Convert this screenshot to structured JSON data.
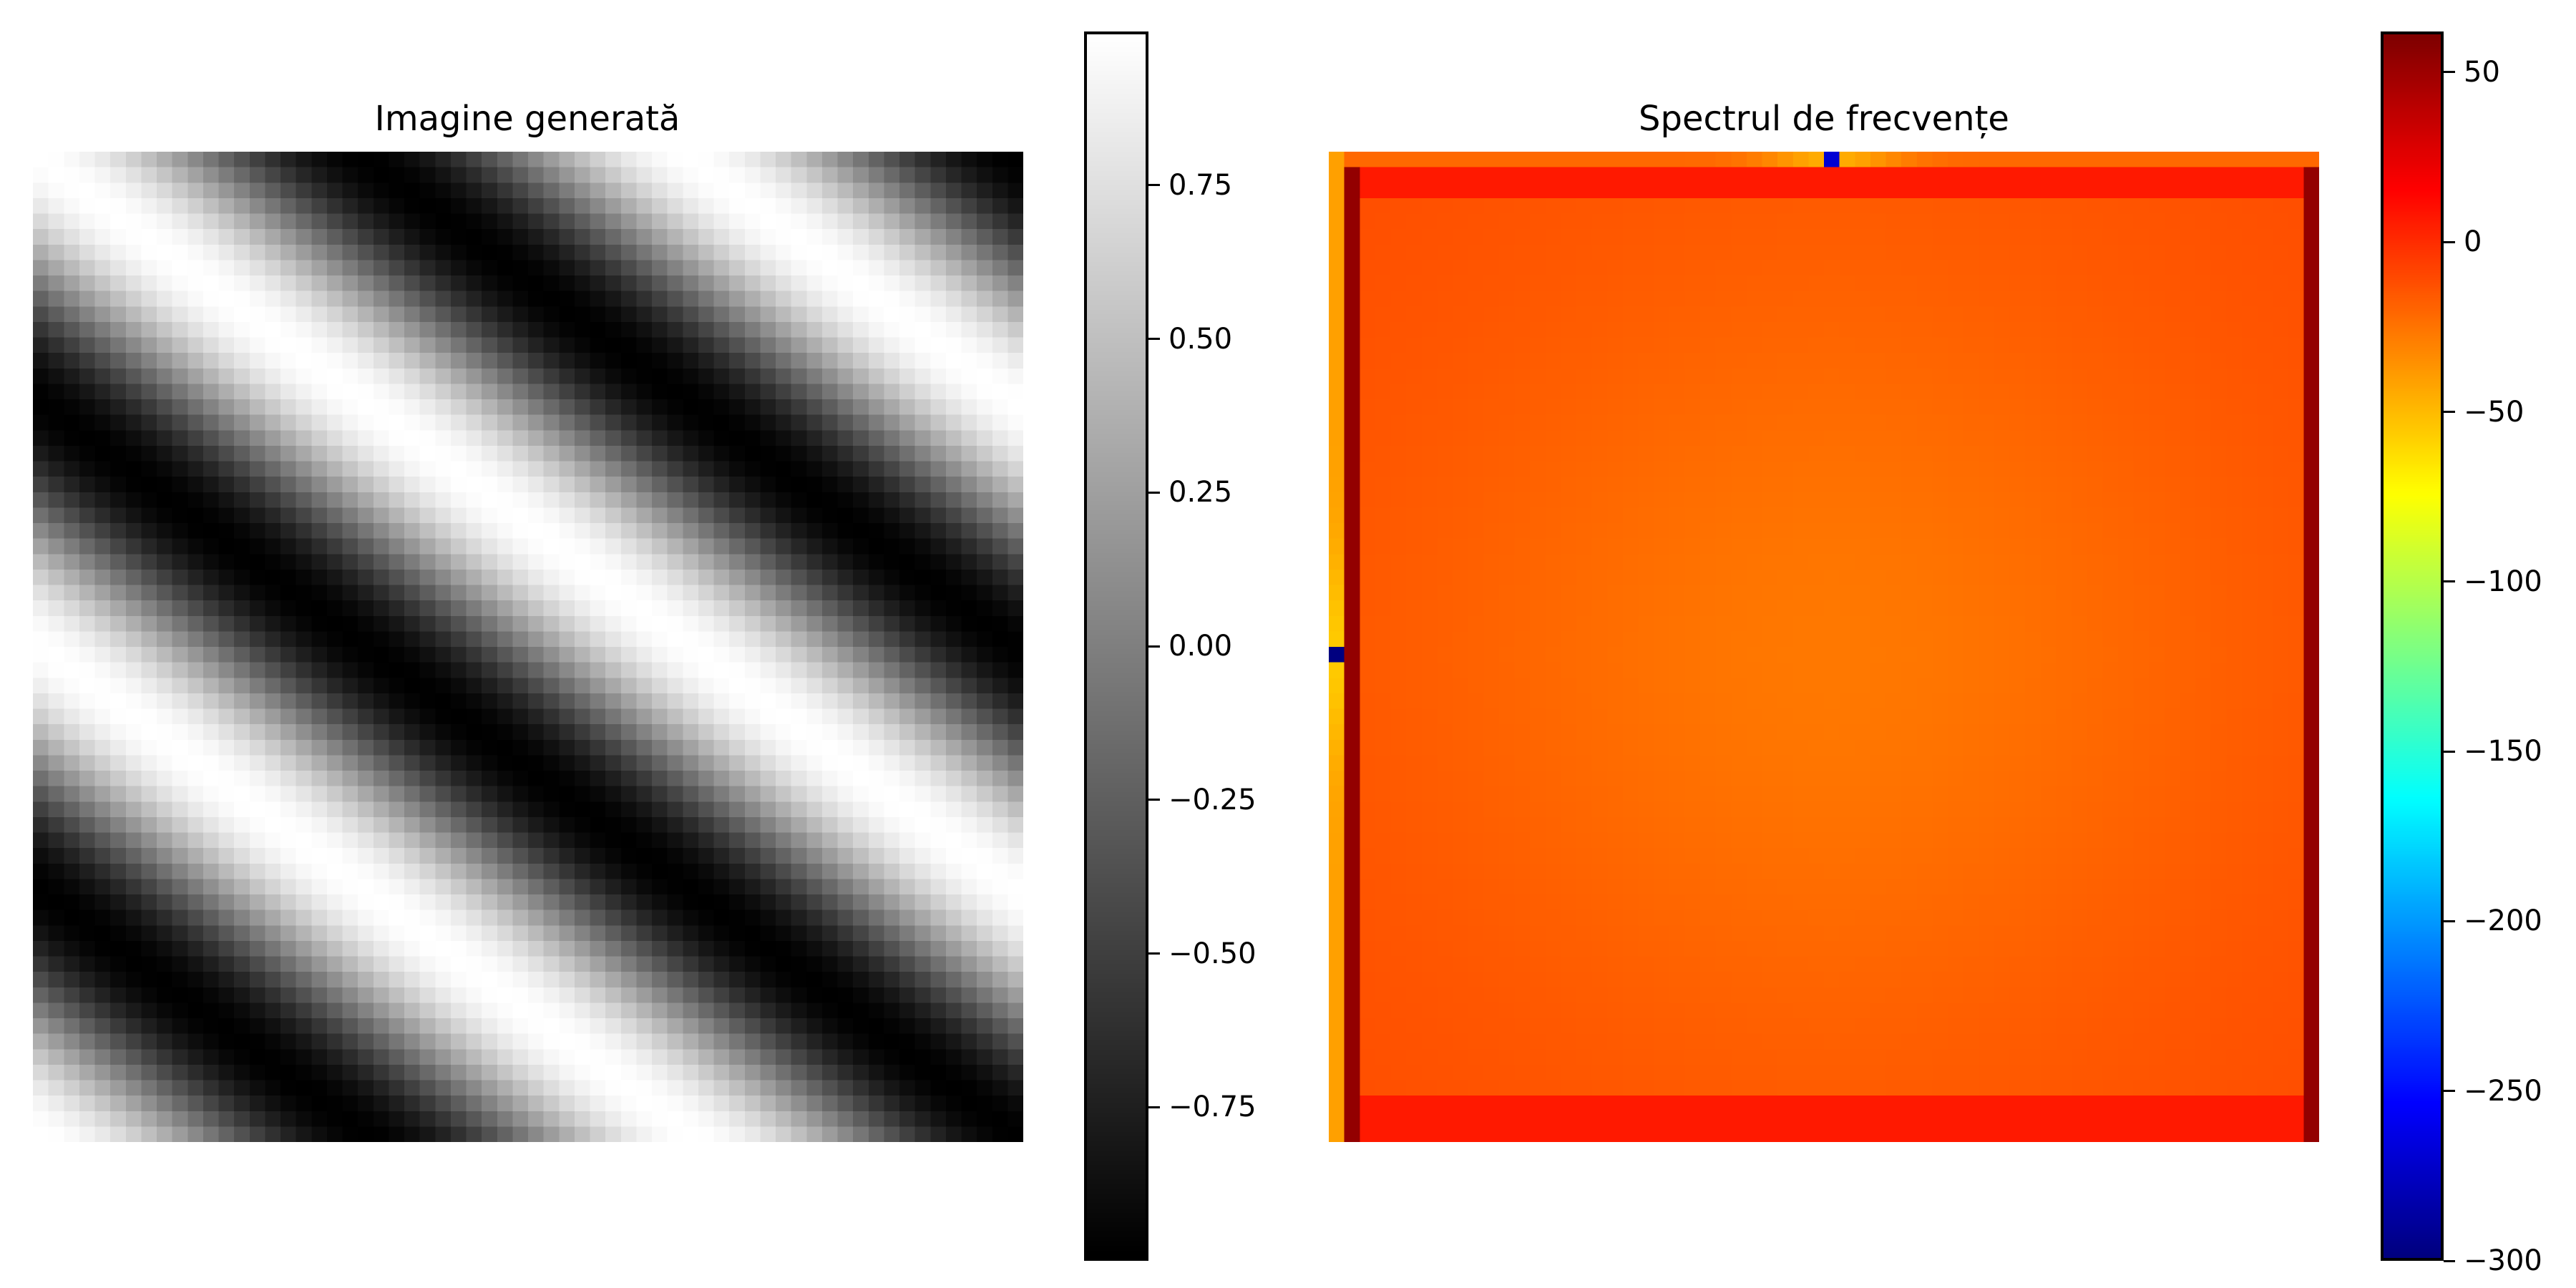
{
  "chart_data": [
    {
      "type": "heatmap",
      "title": "Imagine generată",
      "colormap": "gray",
      "grid_size": 64,
      "function": "cos(2*pi*(fx*x + fy*y))",
      "value_range": [
        -1,
        1
      ],
      "colorbar": {
        "ticks": [
          0.75,
          0.5,
          0.25,
          0.0,
          -0.25,
          -0.5,
          -0.75
        ],
        "tick_labels": [
          "0.75",
          "0.50",
          "0.25",
          "0.00",
          "−0.25",
          "−0.50",
          "−0.75"
        ]
      }
    },
    {
      "type": "heatmap",
      "title": "Spectrul de frecvențe",
      "colormap": "jet",
      "grid_size": 64,
      "value_range": [
        -300,
        62
      ],
      "background_level": -13,
      "colorbar": {
        "ticks": [
          50,
          0,
          -50,
          -100,
          -150,
          -200,
          -250,
          -300
        ],
        "tick_labels": [
          "50",
          "0",
          "−50",
          "−100",
          "−150",
          "−200",
          "−250",
          "−300"
        ]
      }
    }
  ]
}
